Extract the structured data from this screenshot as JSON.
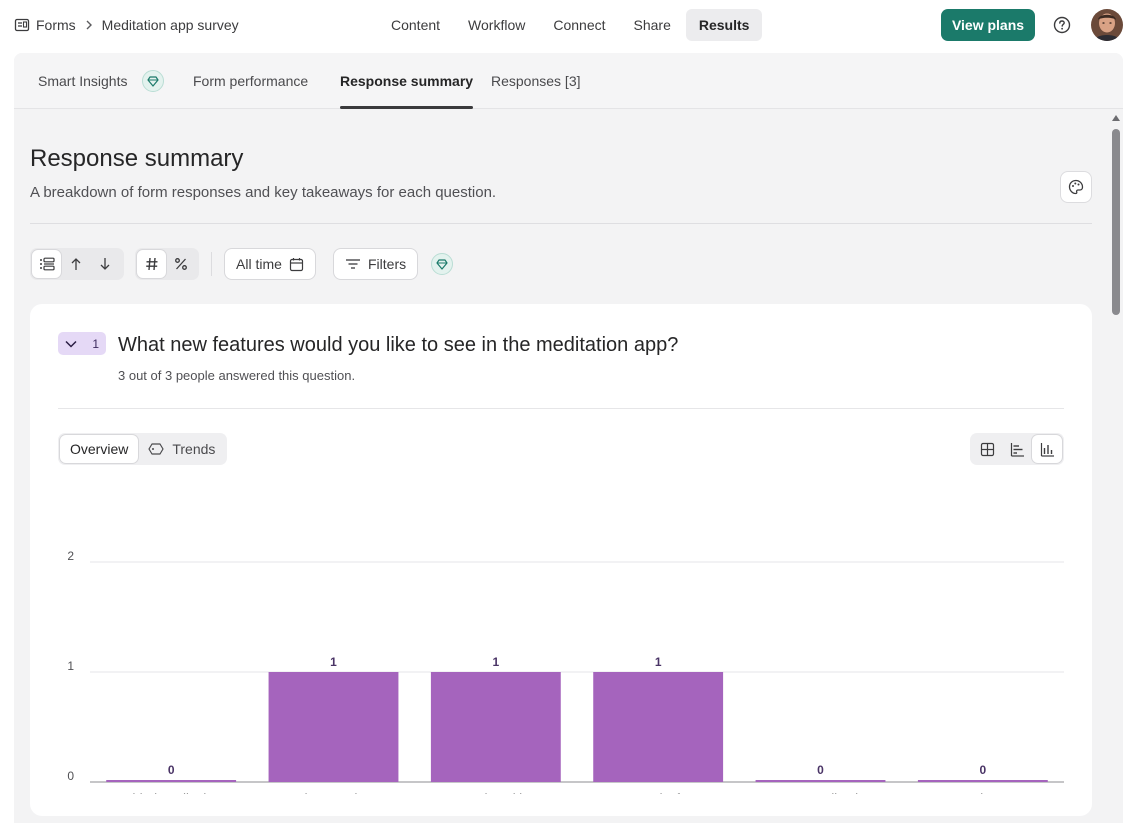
{
  "breadcrumb": {
    "root": "Forms",
    "current": "Meditation app survey"
  },
  "nav": {
    "items": [
      "Content",
      "Workflow",
      "Connect",
      "Share",
      "Results"
    ],
    "active": "Results"
  },
  "header": {
    "cta": "View plans"
  },
  "subtabs": {
    "smart_insights": "Smart Insights",
    "form_performance": "Form performance",
    "response_summary": "Response summary",
    "responses": "Responses [3]",
    "active": "Response summary"
  },
  "page": {
    "title": "Response summary",
    "description": "A breakdown of form responses and key takeaways for each question."
  },
  "toolbar": {
    "time_filter": "All time",
    "filters": "Filters"
  },
  "question": {
    "number": "1",
    "title": "What new features would you like to see in the meditation app?",
    "answered": "3 out of 3 people answered this question.",
    "view_overview": "Overview",
    "view_trends": "Trends"
  },
  "colors": {
    "bar": "#a564bd",
    "accent": "#1b7a6a",
    "badge": "#e5d9f6"
  },
  "chart_data": {
    "type": "bar",
    "categories": [
      "Guided meditations",
      "Sleep stories",
      "Mood tracking",
      "Community forum",
      "Personalized recommendations",
      "Other"
    ],
    "category_lines": [
      [
        "Guided meditations"
      ],
      [
        "Sleep stories"
      ],
      [
        "Mood tracking"
      ],
      [
        "Community forum"
      ],
      [
        "Personalized",
        "recommendations"
      ],
      [
        "Other"
      ]
    ],
    "values": [
      0,
      1,
      1,
      1,
      0,
      0
    ],
    "yticks": [
      0,
      1,
      2
    ],
    "ylim": [
      0,
      2
    ],
    "grid": true
  }
}
